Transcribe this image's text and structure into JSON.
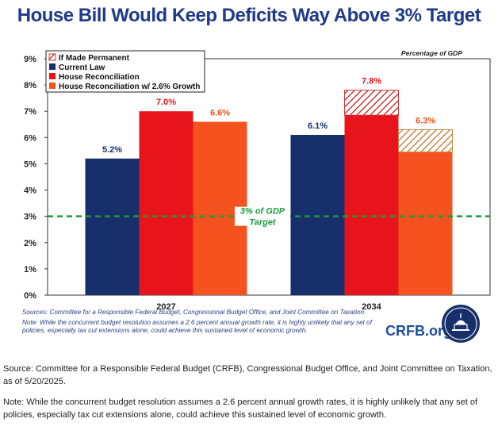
{
  "title": "House Bill Would Keep Deficits Way Above 3% Target",
  "unit_note": "Percentage of GDP",
  "target_label": "3% of GDP",
  "target_label2": "Target",
  "brand": "CRFB.org",
  "notes": {
    "sources": "Sources: Committee for a Responsible Federal Budget, Congressional Budget Office, and Joint Committee on Taxation.",
    "note": "Note: While the concurrent budget resolution assumes a 2.6 percent annual growth rate, it is highly unlikely that any set of policies, especially tax cut extensions alone, could achieve this sustained level of economic growth."
  },
  "footer": {
    "source": "Source: Committee for a Responsible Federal Budget (CRFB), Congressional Budget Office, and Joint Committee on Taxation, as of 5/20/2025.",
    "note": "Note: While the concurrent budget resolution assumes a 2.6 percent annual growth rates, it is highly unlikely that any set of policies, especially tax cut extensions alone, could achieve this sustained level of economic growth."
  },
  "colors": {
    "current_law": "#17306b",
    "house_reconciliation": "#e8141c",
    "house_growth": "#f4531f",
    "permanent_red": "#c83a3a",
    "permanent_orange": "#c58a4a",
    "target_line": "#1e9a3c",
    "axis_text": "#222222"
  },
  "chart_data": {
    "type": "bar",
    "categories": [
      "2027",
      "2034"
    ],
    "y_ticks": [
      "0%",
      "1%",
      "2%",
      "3%",
      "4%",
      "5%",
      "6%",
      "7%",
      "8%",
      "9%"
    ],
    "ylim": [
      0,
      9
    ],
    "target": 3,
    "series": [
      {
        "name": "Current Law",
        "values": [
          5.2,
          6.1
        ],
        "labels": [
          "5.2%",
          "6.1%"
        ],
        "color": "#17306b"
      },
      {
        "name": "House Reconciliation",
        "values": [
          7.0,
          6.85
        ],
        "labels": [
          "7.0%",
          ""
        ],
        "color": "#e8141c"
      },
      {
        "name": "House Reconciliation w/ 2.6% Growth",
        "values": [
          6.6,
          5.45
        ],
        "labels": [
          "6.6%",
          ""
        ],
        "color": "#f4531f"
      }
    ],
    "permanent_extension": {
      "name": "If Made Permanent",
      "items": [
        {
          "series": "House Reconciliation",
          "category": "2034",
          "total": 7.8,
          "label": "7.8%"
        },
        {
          "series": "House Reconciliation w/ 2.6% Growth",
          "category": "2034",
          "total": 6.3,
          "label": "6.3%"
        }
      ]
    },
    "legend_items": [
      "If Made Permanent",
      "Current Law",
      "House Reconciliation",
      "House Reconciliation w/ 2.6% Growth"
    ],
    "legend_position": "top-left",
    "grid": false
  }
}
